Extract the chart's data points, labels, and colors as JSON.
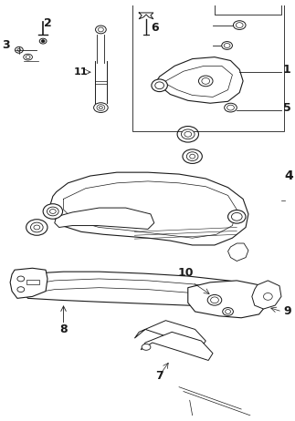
{
  "bg_color": "#ffffff",
  "line_color": "#1a1a1a",
  "fig_width": 3.23,
  "fig_height": 4.62,
  "dpi": 100
}
